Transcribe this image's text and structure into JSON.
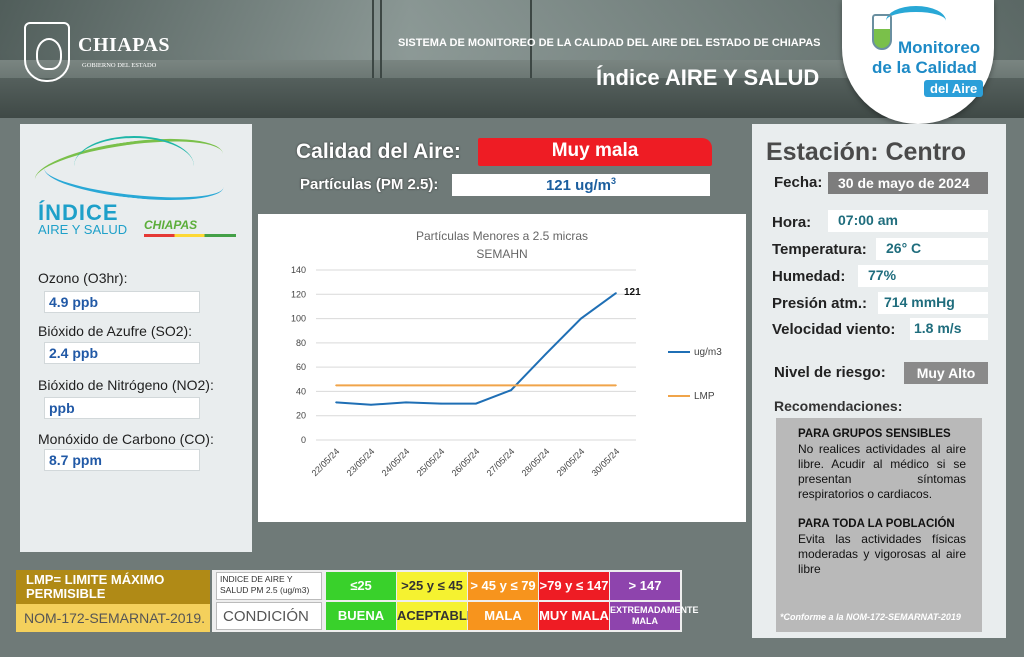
{
  "header": {
    "gov_name": "CHIAPAS",
    "gov_sub": "GOBIERNO DEL ESTADO",
    "system_title": "SISTEMA DE MONITOREO DE LA CALIDAD DEL AIRE DEL ESTADO DE CHIAPAS",
    "index_title": "Índice AIRE Y SALUD",
    "badge": {
      "line1": "Monitoreo",
      "line2": "de la Calidad",
      "line3": "del Aire"
    }
  },
  "left": {
    "logo": {
      "indice": "ÍNDICE",
      "aire_salud": "AIRE Y SALUD",
      "chiapas": "CHIAPAS"
    },
    "pollutants": [
      {
        "label": "Ozono (O3hr):",
        "value": "4.9 ppb"
      },
      {
        "label": "Bióxido de Azufre (SO2):",
        "value": "2.4 ppb"
      },
      {
        "label": "Bióxido de Nitrógeno (NO2):",
        "value": " ppb"
      },
      {
        "label": "Monóxido de Carbono (CO):",
        "value": "8.7 ppm"
      }
    ]
  },
  "middle": {
    "calidad_label": "Calidad del Aire:",
    "calidad_value": "Muy mala",
    "pm_label": "Partículas (PM 2.5):",
    "pm_value": "121 ug/m3"
  },
  "chart_data": {
    "type": "line",
    "title": "Partículas Menores a 2.5 micras",
    "subtitle": "SEMAHN",
    "categories": [
      "22/05/24",
      "23/05/24",
      "24/05/24",
      "25/05/24",
      "26/05/24",
      "27/05/24",
      "28/05/24",
      "29/05/24",
      "30/05/24"
    ],
    "series": [
      {
        "name": "ug/m3",
        "color": "#1f6fb5",
        "values": [
          31,
          29,
          31,
          30,
          30,
          41,
          71,
          100,
          121
        ]
      },
      {
        "name": "LMP",
        "color": "#f0a44a",
        "values": [
          45,
          45,
          45,
          45,
          45,
          45,
          45,
          45,
          45
        ]
      }
    ],
    "yticks": [
      "0",
      "20",
      "40",
      "60",
      "80",
      "100",
      "120",
      "140"
    ],
    "ylim": [
      0,
      140
    ],
    "last_label": "121",
    "legend_position": "right",
    "grid": true
  },
  "right": {
    "station": "Estación: Centro",
    "fecha_label": "Fecha:",
    "fecha_value": "30 de mayo de 2024",
    "fields": [
      {
        "label": "Hora:",
        "value": "07:00 am"
      },
      {
        "label": "Temperatura:",
        "value": "26° C"
      },
      {
        "label": "Humedad:",
        "value": "77%"
      },
      {
        "label": "Presión atm.:",
        "value": "714 mmHg"
      },
      {
        "label": "Velocidad viento:",
        "value": "1.8 m/s"
      }
    ],
    "risk_label": "Nivel de riesgo:",
    "risk_value": "Muy Alto",
    "reco_title": "Recomendaciones:",
    "reco_group1_title": "PARA GRUPOS SENSIBLES",
    "reco_group1_text": "No realices actividades al aire libre. Acudir al médico si se presentan síntomas respiratorios o cardiacos.",
    "reco_group2_title": "PARA TODA LA POBLACIÓN",
    "reco_group2_text": " Evita las actividades físicas moderadas y vigorosas al aire libre",
    "footnote": "*Conforme a la NOM-172-SEMARNAT-2019"
  },
  "legend": {
    "lmp_title": "LMP= LIMITE MÁXIMO PERMISIBLE",
    "lmp_norm": "NOM-172-SEMARNAT-2019.",
    "index_header": "INDICE DE AIRE Y SALUD PM 2.5 (ug/m3)",
    "condition_header": "CONDICIÓN",
    "ranges": [
      {
        "range": "≤25",
        "condition": "BUENA",
        "color": "#39d12b",
        "text": "#ffffff"
      },
      {
        "range": ">25 y ≤ 45",
        "condition": "ACEPTABLE",
        "color": "#f5f230",
        "text": "#333333"
      },
      {
        "range": "> 45 y ≤ 79",
        "condition": "MALA",
        "color": "#f7941d",
        "text": "#ffffff"
      },
      {
        "range": ">79 y ≤ 147",
        "condition": "MUY MALA",
        "color": "#ee1c24",
        "text": "#ffffff"
      },
      {
        "range": "> 147",
        "condition": "EXTREMADAMENTE MALA",
        "color": "#8e44ad",
        "text": "#ffffff"
      }
    ]
  }
}
